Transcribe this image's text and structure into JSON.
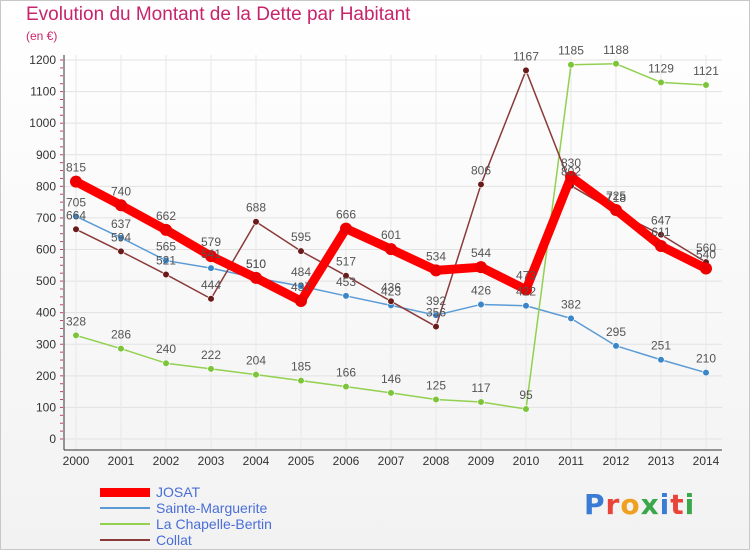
{
  "header": {
    "title": "Evolution du Montant de la Dette par Habitant",
    "subtitle": "(en €)"
  },
  "logo": {
    "text": "Proxiti"
  },
  "chart_data": {
    "type": "line",
    "title": "Evolution du Montant de la Dette par Habitant",
    "subtitle": "(en €)",
    "xlabel": "",
    "ylabel": "",
    "x": [
      2000,
      2001,
      2002,
      2003,
      2004,
      2005,
      2006,
      2007,
      2008,
      2009,
      2010,
      2011,
      2012,
      2013,
      2014
    ],
    "x_tick_labels": [
      "2000",
      "2001",
      "2002",
      "2003",
      "2004",
      "2005",
      "2006",
      "2007",
      "2008",
      "2009",
      "2010",
      "2011",
      "2012",
      "2013",
      "2014"
    ],
    "ylim": [
      0,
      1200
    ],
    "y_ticks": [
      0,
      100,
      200,
      300,
      400,
      500,
      600,
      700,
      800,
      900,
      1000,
      1100,
      1200
    ],
    "y_tick_labels": [
      "0",
      "100",
      "200",
      "300",
      "400",
      "500",
      "600",
      "700",
      "800",
      "900",
      "1000",
      "1100",
      "1200"
    ],
    "grid": true,
    "legend_position": "bottom-left",
    "series": [
      {
        "name": "Sainte-Marguerite",
        "color": "#5b9bd5",
        "point_color": "#3a86c8",
        "values": [
          705,
          637,
          565,
          541,
          510,
          484,
          453,
          423,
          392,
          426,
          422,
          382,
          295,
          251,
          210
        ],
        "labels": [
          "705",
          "637",
          "565",
          "541",
          "510",
          "484",
          "453",
          "423",
          "392",
          "426",
          "422",
          "382",
          "295",
          "251",
          "210"
        ]
      },
      {
        "name": "La Chapelle-Bertin",
        "color": "#92d050",
        "point_color": "#7cc43a",
        "values": [
          328,
          286,
          240,
          222,
          204,
          185,
          166,
          146,
          125,
          117,
          95,
          1185,
          1188,
          1129,
          1121
        ],
        "labels": [
          "328",
          "286",
          "240",
          "222",
          "204",
          "185",
          "166",
          "146",
          "125",
          "117",
          "95",
          "1185",
          "1188",
          "1129",
          "1121"
        ]
      },
      {
        "name": "Collat",
        "color": "#8b3a3a",
        "point_color": "#6b1a1a",
        "values": [
          664,
          594,
          521,
          444,
          688,
          595,
          517,
          436,
          356,
          806,
          1167,
          802,
          718,
          647,
          560
        ],
        "labels": [
          "664",
          "594",
          "521",
          "444",
          "688",
          "595",
          "517",
          "436",
          "356",
          "806",
          "1167",
          "802",
          "718",
          "647",
          "560"
        ]
      },
      {
        "name": "JOSAT",
        "color": "#ff0000",
        "point_color": "#ee0000",
        "values": [
          815,
          740,
          662,
          579,
          510,
          437,
          666,
          601,
          534,
          544,
          473,
          830,
          725,
          611,
          540
        ],
        "labels": [
          "815",
          "740",
          "662",
          "579",
          "510",
          "437",
          "666",
          "601",
          "534",
          "544",
          "473",
          "830",
          "725",
          "611",
          "540"
        ]
      }
    ],
    "legend": [
      "JOSAT",
      "Sainte-Marguerite",
      "La Chapelle-Bertin",
      "Collat"
    ]
  }
}
